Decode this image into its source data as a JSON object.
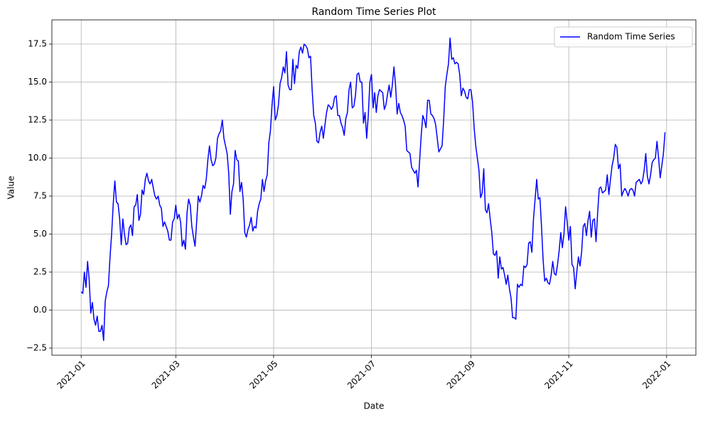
{
  "chart_data": {
    "type": "line",
    "title": "Random Time Series Plot",
    "x_label": "Date",
    "y_label": "Value",
    "x": [
      0,
      1,
      2,
      3,
      4,
      5,
      6,
      7,
      8,
      9,
      10,
      11,
      12,
      13,
      14,
      15,
      16,
      17,
      18,
      19,
      20,
      21,
      22,
      23,
      24,
      25,
      26,
      27,
      28,
      29,
      30,
      31,
      32,
      33,
      34,
      35,
      36,
      37,
      38,
      39,
      40,
      41,
      42,
      43,
      44,
      45,
      46,
      47,
      48,
      49,
      50,
      51,
      52,
      53,
      54,
      55,
      56,
      57,
      58,
      59,
      60,
      61,
      62,
      63,
      64,
      65,
      66,
      67,
      68,
      69,
      70,
      71,
      72,
      73,
      74,
      75,
      76,
      77,
      78,
      79,
      80,
      81,
      82,
      83,
      84,
      85,
      86,
      87,
      88,
      89,
      90,
      91,
      92,
      93,
      94,
      95,
      96,
      97,
      98,
      99,
      100,
      101,
      102,
      103,
      104,
      105,
      106,
      107,
      108,
      109,
      110,
      111,
      112,
      113,
      114,
      115,
      116,
      117,
      118,
      119,
      120,
      121,
      122,
      123,
      124,
      125,
      126,
      127,
      128,
      129,
      130,
      131,
      132,
      133,
      134,
      135,
      136,
      137,
      138,
      139,
      140,
      141,
      142,
      143,
      144,
      145,
      146,
      147,
      148,
      149,
      150,
      151,
      152,
      153,
      154,
      155,
      156,
      157,
      158,
      159,
      160,
      161,
      162,
      163,
      164,
      165,
      166,
      167,
      168,
      169,
      170,
      171,
      172,
      173,
      174,
      175,
      176,
      177,
      178,
      179,
      180,
      181,
      182,
      183,
      184,
      185,
      186,
      187,
      188,
      189,
      190,
      191,
      192,
      193,
      194,
      195,
      196,
      197,
      198,
      199,
      200,
      201,
      202,
      203,
      204,
      205,
      206,
      207,
      208,
      209,
      210,
      211,
      212,
      213,
      214,
      215,
      216,
      217,
      218,
      219,
      220,
      221,
      222,
      223,
      224,
      225,
      226,
      227,
      228,
      229,
      230,
      231,
      232,
      233,
      234,
      235,
      236,
      237,
      238,
      239,
      240,
      241,
      242,
      243,
      244,
      245,
      246,
      247,
      248,
      249,
      250,
      251,
      252,
      253,
      254,
      255,
      256,
      257,
      258,
      259,
      260,
      261,
      262,
      263,
      264,
      265,
      266,
      267,
      268,
      269,
      270,
      271,
      272,
      273,
      274,
      275,
      276,
      277,
      278,
      279,
      280,
      281,
      282,
      283,
      284,
      285,
      286,
      287,
      288,
      289,
      290,
      291,
      292,
      293,
      294,
      295,
      296,
      297,
      298,
      299,
      300,
      301,
      302,
      303,
      304,
      305,
      306,
      307,
      308,
      309,
      310,
      311,
      312,
      313,
      314,
      315,
      316,
      317,
      318,
      319,
      320,
      321,
      322,
      323,
      324,
      325,
      326,
      327,
      328,
      329,
      330,
      331,
      332,
      333,
      334,
      335,
      336,
      337,
      338,
      339,
      340,
      341,
      342,
      343,
      344,
      345,
      346,
      347,
      348,
      349,
      350,
      351,
      352,
      353,
      354,
      355,
      356,
      357,
      358,
      359,
      360,
      361,
      362,
      363,
      364
    ],
    "series": [
      {
        "name": "Random Time Series",
        "color": "#0000ff",
        "values": [
          1.2,
          1.1,
          2.5,
          1.5,
          3.2,
          2.0,
          -0.2,
          0.5,
          -0.6,
          -1.0,
          -0.4,
          -1.4,
          -1.4,
          -1.0,
          -2.0,
          0.6,
          1.2,
          1.6,
          3.5,
          5.0,
          7.0,
          8.5,
          7.1,
          7.0,
          6.0,
          4.3,
          6.0,
          5.0,
          4.3,
          4.4,
          5.4,
          5.6,
          4.9,
          6.8,
          6.9,
          7.6,
          5.9,
          6.3,
          7.9,
          7.6,
          8.6,
          9.0,
          8.5,
          8.3,
          8.6,
          8.0,
          7.5,
          7.3,
          7.5,
          6.9,
          6.7,
          5.5,
          5.8,
          5.5,
          5.2,
          4.6,
          4.6,
          5.8,
          6.0,
          6.9,
          6.0,
          6.3,
          5.8,
          4.2,
          4.6,
          4.0,
          6.4,
          7.3,
          6.9,
          5.5,
          4.8,
          4.2,
          5.8,
          7.5,
          7.1,
          7.5,
          8.2,
          8.0,
          8.6,
          9.9,
          10.8,
          9.9,
          9.5,
          9.6,
          10.0,
          11.3,
          11.6,
          11.8,
          12.5,
          11.3,
          10.8,
          10.3,
          9.0,
          6.3,
          7.8,
          8.3,
          10.5,
          9.9,
          9.8,
          7.8,
          8.4,
          7.3,
          5.1,
          4.8,
          5.3,
          5.6,
          6.1,
          5.2,
          5.5,
          5.4,
          6.5,
          7.0,
          7.3,
          8.6,
          7.8,
          8.5,
          8.9,
          11.0,
          11.8,
          13.5,
          14.7,
          12.5,
          12.8,
          13.5,
          14.9,
          15.3,
          16.0,
          15.6,
          17.0,
          14.8,
          14.5,
          14.5,
          16.5,
          14.9,
          16.1,
          15.9,
          17.0,
          17.3,
          16.9,
          17.5,
          17.4,
          17.2,
          16.6,
          16.7,
          14.5,
          12.8,
          12.3,
          11.1,
          11.0,
          11.7,
          12.1,
          11.3,
          12.2,
          13.0,
          13.5,
          13.4,
          13.2,
          13.4,
          14.0,
          14.1,
          12.8,
          12.8,
          12.3,
          12.0,
          11.5,
          12.6,
          13.0,
          14.5,
          15.0,
          13.3,
          13.4,
          14.1,
          15.5,
          15.6,
          15.0,
          15.0,
          12.3,
          13.0,
          11.3,
          12.8,
          15.0,
          15.5,
          13.3,
          14.3,
          13.0,
          14.1,
          14.5,
          14.4,
          14.3,
          13.2,
          13.5,
          14.2,
          14.8,
          14.0,
          14.8,
          16.0,
          14.8,
          12.9,
          13.6,
          13.0,
          12.8,
          12.5,
          12.1,
          10.5,
          10.4,
          10.3,
          9.4,
          9.2,
          9.0,
          9.2,
          8.1,
          9.8,
          11.5,
          12.8,
          12.5,
          12.0,
          13.8,
          13.8,
          12.9,
          12.8,
          12.6,
          12.2,
          11.3,
          10.4,
          10.6,
          10.8,
          12.5,
          14.7,
          15.5,
          16.2,
          17.9,
          16.5,
          16.6,
          16.2,
          16.3,
          16.2,
          15.5,
          14.1,
          14.6,
          14.4,
          14.0,
          13.9,
          14.5,
          14.5,
          13.7,
          12.0,
          10.8,
          10.0,
          9.2,
          7.4,
          7.7,
          9.3,
          6.6,
          6.4,
          7.0,
          6.0,
          5.1,
          3.7,
          3.6,
          3.9,
          2.1,
          3.5,
          2.7,
          2.8,
          2.3,
          1.7,
          2.3,
          1.4,
          0.8,
          -0.5,
          -0.5,
          -0.6,
          1.7,
          1.5,
          1.7,
          1.6,
          2.9,
          2.8,
          3.0,
          4.4,
          4.5,
          3.8,
          6.0,
          7.3,
          8.6,
          7.3,
          7.4,
          5.5,
          3.3,
          1.9,
          2.1,
          1.8,
          1.7,
          2.3,
          3.2,
          2.4,
          2.3,
          3.0,
          3.9,
          5.1,
          4.1,
          5.0,
          6.8,
          5.8,
          4.6,
          5.5,
          3.0,
          2.8,
          1.4,
          2.5,
          3.5,
          2.9,
          3.8,
          5.5,
          5.7,
          4.9,
          5.9,
          6.5,
          4.8,
          5.9,
          6.0,
          4.5,
          6.4,
          8.0,
          8.1,
          7.7,
          7.8,
          7.9,
          8.9,
          7.6,
          8.6,
          9.5,
          10.0,
          10.9,
          10.7,
          9.3,
          9.6,
          7.5,
          7.8,
          8.0,
          7.8,
          7.5,
          7.9,
          8.0,
          7.9,
          7.5,
          8.4,
          8.5,
          8.6,
          8.3,
          8.5,
          9.2,
          10.3,
          8.8,
          8.3,
          8.9,
          9.7,
          9.9,
          10.0,
          11.1,
          10.0,
          8.7,
          9.5,
          10.3,
          11.7
        ]
      }
    ],
    "xlim": [
      -18.25,
      383.25
    ],
    "xticks": [
      {
        "value": 0,
        "label": "2021-01"
      },
      {
        "value": 59,
        "label": "2021-03"
      },
      {
        "value": 120,
        "label": "2021-05"
      },
      {
        "value": 181,
        "label": "2021-07"
      },
      {
        "value": 243,
        "label": "2021-09"
      },
      {
        "value": 304,
        "label": "2021-11"
      },
      {
        "value": 365,
        "label": "2022-01"
      }
    ],
    "ylim": [
      -2.97,
      19.09
    ],
    "yticks": [
      {
        "value": -2.5,
        "label": "−2.5"
      },
      {
        "value": 0,
        "label": "0.0"
      },
      2.5,
      {
        "value": 5,
        "label": "5.0"
      },
      7.5,
      {
        "value": 10,
        "label": "10.0"
      },
      12.5,
      {
        "value": 15,
        "label": "15.0"
      },
      17.5
    ],
    "grid": true,
    "legend": "upper right"
  }
}
